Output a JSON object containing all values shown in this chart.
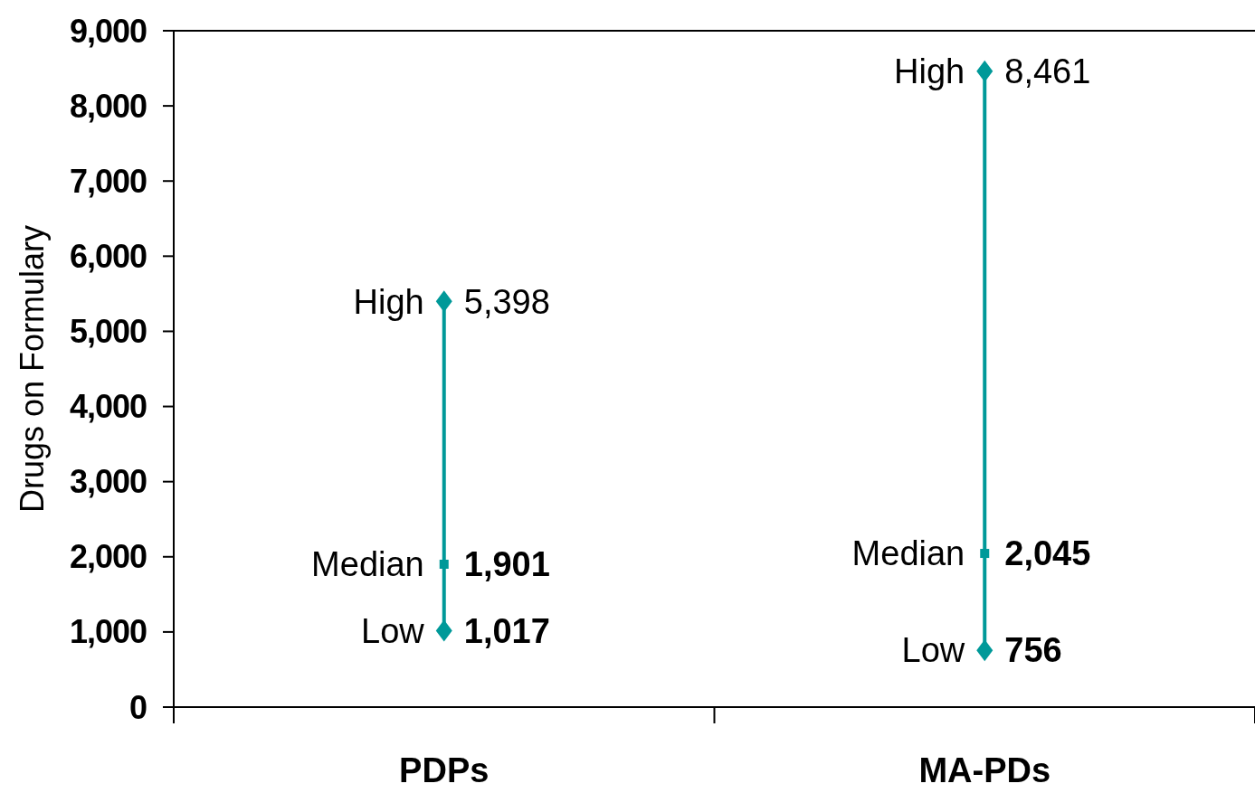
{
  "chart_data": {
    "type": "scatter",
    "ylabel": "Drugs on Formulary",
    "categories": [
      "PDPs",
      "MA-PDs"
    ],
    "series": [
      {
        "type": "line",
        "color": "#009999",
        "x": [
          "PDPs",
          "PDPs"
        ],
        "values": [
          1017,
          5398
        ]
      },
      {
        "type": "line",
        "color": "#009999",
        "x": [
          "MA-PDs",
          "MA-PDs"
        ],
        "values": [
          756,
          8461
        ]
      },
      {
        "name": "High",
        "color": "#009999",
        "marker": "diamond",
        "values": [
          5398,
          8461
        ],
        "value_labels": [
          "5,398",
          "8,461"
        ]
      },
      {
        "name": "Median",
        "color": "#009999",
        "marker": "square",
        "values": [
          1901,
          2045
        ],
        "value_labels": [
          "1,901",
          "2,045"
        ]
      },
      {
        "name": "Low",
        "color": "#009999",
        "marker": "diamond",
        "values": [
          1017,
          756
        ],
        "value_labels": [
          "1,017",
          "756"
        ]
      }
    ],
    "grid": false,
    "ylim": [
      0,
      9000
    ],
    "yticks": [
      {
        "value": 0,
        "label": "0"
      },
      {
        "value": 1000,
        "label": "1,000"
      },
      {
        "value": 2000,
        "label": "2,000"
      },
      {
        "value": 3000,
        "label": "3,000"
      },
      {
        "value": 4000,
        "label": "4,000"
      },
      {
        "value": 5000,
        "label": "5,000"
      },
      {
        "value": 6000,
        "label": "6,000"
      },
      {
        "value": 7000,
        "label": "7,000"
      },
      {
        "value": 8000,
        "label": "8,000"
      },
      {
        "value": 9000,
        "label": "9,000"
      }
    ]
  }
}
